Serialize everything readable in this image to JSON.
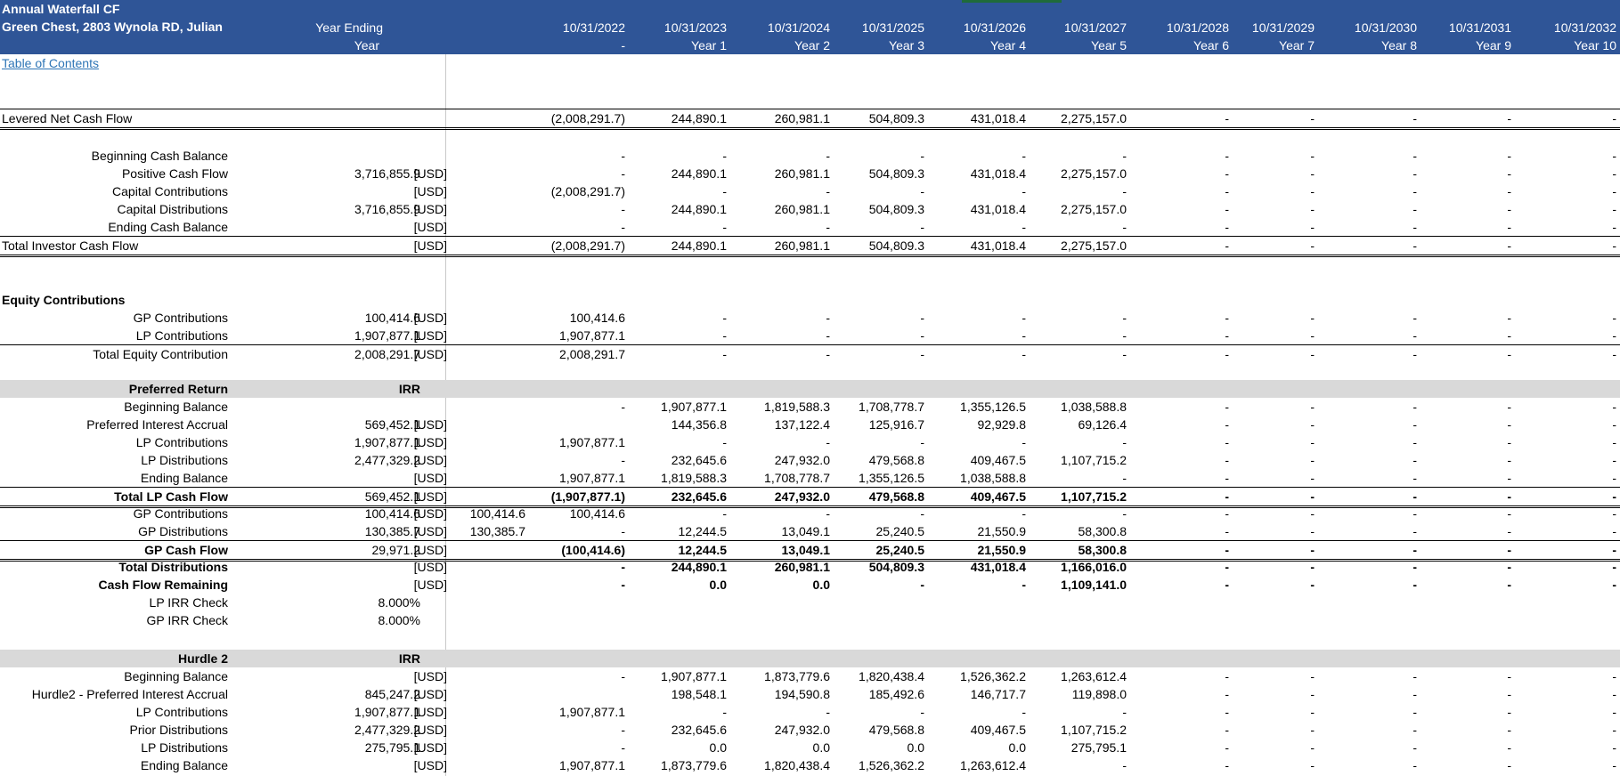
{
  "header": {
    "title": "Annual Waterfall CF",
    "subtitle": "Green Chest, 2803 Wynola RD, Julian",
    "col_label_1": "Year Ending",
    "col_label_2": "Year",
    "dates": [
      "10/31/2022",
      "10/31/2023",
      "10/31/2024",
      "10/31/2025",
      "10/31/2026",
      "10/31/2027",
      "10/31/2028",
      "10/31/2029",
      "10/31/2030",
      "10/31/2031",
      "10/31/2032"
    ],
    "years": [
      "-",
      "Year 1",
      "Year 2",
      "Year 3",
      "Year 4",
      "Year 5",
      "Year 6",
      "Year 7",
      "Year 8",
      "Year 9",
      "Year 10"
    ]
  },
  "toc_link": "Table of Contents",
  "rows": [
    {
      "label": "Levered Net Cash Flow",
      "align": "left",
      "total": "",
      "unit": "",
      "extra": "",
      "values": [
        "(2,008,291.7)",
        "244,890.1",
        "260,981.1",
        "504,809.3",
        "431,018.4",
        "2,275,157.0",
        "-",
        "-",
        "-",
        "-",
        "-"
      ]
    },
    {
      "label": "Beginning Cash Balance",
      "total": "",
      "unit": "",
      "extra": "",
      "values": [
        "-",
        "-",
        "-",
        "-",
        "-",
        "-",
        "-",
        "-",
        "-",
        "-",
        "-"
      ]
    },
    {
      "label": "Positive Cash Flow",
      "total": "3,716,855.9",
      "unit": "[USD]",
      "extra": "",
      "values": [
        "-",
        "244,890.1",
        "260,981.1",
        "504,809.3",
        "431,018.4",
        "2,275,157.0",
        "-",
        "-",
        "-",
        "-",
        "-"
      ]
    },
    {
      "label": "Capital Contributions",
      "total": "",
      "unit": "[USD]",
      "extra": "",
      "values": [
        "(2,008,291.7)",
        "-",
        "-",
        "-",
        "-",
        "-",
        "-",
        "-",
        "-",
        "-",
        "-"
      ]
    },
    {
      "label": "Capital Distributions",
      "total": "3,716,855.9",
      "unit": "[USD]",
      "extra": "",
      "values": [
        "-",
        "244,890.1",
        "260,981.1",
        "504,809.3",
        "431,018.4",
        "2,275,157.0",
        "-",
        "-",
        "-",
        "-",
        "-"
      ]
    },
    {
      "label": "Ending Cash Balance",
      "total": "",
      "unit": "[USD]",
      "extra": "",
      "values": [
        "-",
        "-",
        "-",
        "-",
        "-",
        "-",
        "-",
        "-",
        "-",
        "-",
        "-"
      ]
    },
    {
      "label": "Total Investor Cash Flow",
      "align": "left",
      "total": "",
      "unit": "[USD]",
      "extra": "",
      "values": [
        "(2,008,291.7)",
        "244,890.1",
        "260,981.1",
        "504,809.3",
        "431,018.4",
        "2,275,157.0",
        "-",
        "-",
        "-",
        "-",
        "-"
      ]
    },
    {
      "label": "Equity Contributions",
      "align": "left",
      "bold": true,
      "total": "",
      "unit": "",
      "extra": "",
      "values": [
        "",
        "",
        "",
        "",
        "",
        "",
        "",
        "",
        "",
        "",
        ""
      ]
    },
    {
      "label": "GP Contributions",
      "total": "100,414.6",
      "unit": "[USD]",
      "extra": "",
      "values": [
        "100,414.6",
        "-",
        "-",
        "-",
        "-",
        "-",
        "-",
        "-",
        "-",
        "-",
        "-"
      ]
    },
    {
      "label": "LP Contributions",
      "total": "1,907,877.1",
      "unit": "[USD]",
      "extra": "",
      "values": [
        "1,907,877.1",
        "-",
        "-",
        "-",
        "-",
        "-",
        "-",
        "-",
        "-",
        "-",
        "-"
      ]
    },
    {
      "label": "Total Equity Contribution",
      "total": "2,008,291.7",
      "unit": "[USD]",
      "extra": "",
      "values": [
        "2,008,291.7",
        "-",
        "-",
        "-",
        "-",
        "-",
        "-",
        "-",
        "-",
        "-",
        "-"
      ]
    },
    {
      "label": "Preferred Return",
      "bold": true,
      "total": "IRR",
      "unit": "",
      "extra": "",
      "values": [
        "",
        "",
        "",
        "",
        "",
        "",
        "",
        "",
        "",
        "",
        ""
      ]
    },
    {
      "label": "Beginning Balance",
      "total": "",
      "unit": "",
      "extra": "",
      "values": [
        "-",
        "1,907,877.1",
        "1,819,588.3",
        "1,708,778.7",
        "1,355,126.5",
        "1,038,588.8",
        "-",
        "-",
        "-",
        "-",
        "-"
      ]
    },
    {
      "label": "Preferred Interest Accrual",
      "total": "569,452.1",
      "unit": "[USD]",
      "extra": "",
      "values": [
        "",
        "144,356.8",
        "137,122.4",
        "125,916.7",
        "92,929.8",
        "69,126.4",
        "-",
        "-",
        "-",
        "-",
        "-"
      ]
    },
    {
      "label": "LP Contributions",
      "total": "1,907,877.1",
      "unit": "[USD]",
      "extra": "",
      "values": [
        "1,907,877.1",
        "-",
        "-",
        "-",
        "-",
        "-",
        "-",
        "-",
        "-",
        "-",
        "-"
      ]
    },
    {
      "label": "LP Distributions",
      "total": "2,477,329.2",
      "unit": "[USD]",
      "extra": "",
      "values": [
        "-",
        "232,645.6",
        "247,932.0",
        "479,568.8",
        "409,467.5",
        "1,107,715.2",
        "-",
        "-",
        "-",
        "-",
        "-"
      ]
    },
    {
      "label": "Ending Balance",
      "total": "",
      "unit": "[USD]",
      "extra": "",
      "values": [
        "1,907,877.1",
        "1,819,588.3",
        "1,708,778.7",
        "1,355,126.5",
        "1,038,588.8",
        "-",
        "-",
        "-",
        "-",
        "-",
        "-"
      ]
    },
    {
      "label": "Total LP Cash Flow",
      "bold": true,
      "total": "569,452.1",
      "unit": "[USD]",
      "extra": "",
      "values": [
        "(1,907,877.1)",
        "232,645.6",
        "247,932.0",
        "479,568.8",
        "409,467.5",
        "1,107,715.2",
        "-",
        "-",
        "-",
        "-",
        "-"
      ]
    },
    {
      "label": "GP Contributions",
      "total": "100,414.6",
      "unit": "[USD]",
      "extra": "100,414.6",
      "values": [
        "100,414.6",
        "-",
        "-",
        "-",
        "-",
        "-",
        "-",
        "-",
        "-",
        "-",
        "-"
      ]
    },
    {
      "label": "GP Distributions",
      "total": "130,385.7",
      "unit": "[USD]",
      "extra": "130,385.7",
      "values": [
        "-",
        "12,244.5",
        "13,049.1",
        "25,240.5",
        "21,550.9",
        "58,300.8",
        "-",
        "-",
        "-",
        "-",
        "-"
      ]
    },
    {
      "label": "GP Cash Flow",
      "bold": true,
      "total": "29,971.2",
      "unit": "[USD]",
      "extra": "",
      "values": [
        "(100,414.6)",
        "12,244.5",
        "13,049.1",
        "25,240.5",
        "21,550.9",
        "58,300.8",
        "-",
        "-",
        "-",
        "-",
        "-"
      ]
    },
    {
      "label": "Total Distributions",
      "bold": true,
      "total": "",
      "unit": "[USD]",
      "extra": "",
      "values": [
        "-",
        "244,890.1",
        "260,981.1",
        "504,809.3",
        "431,018.4",
        "1,166,016.0",
        "-",
        "-",
        "-",
        "-",
        "-"
      ]
    },
    {
      "label": "Cash Flow Remaining",
      "bold": true,
      "total": "",
      "unit": "[USD]",
      "extra": "",
      "values": [
        "-",
        "0.0",
        "0.0",
        "-",
        "-",
        "1,109,141.0",
        "-",
        "-",
        "-",
        "-",
        "-"
      ]
    },
    {
      "label": "LP IRR Check",
      "total": "8.000%",
      "unit": "",
      "extra": "",
      "values": [
        "",
        "",
        "",
        "",
        "",
        "",
        "",
        "",
        "",
        "",
        ""
      ]
    },
    {
      "label": "GP IRR Check",
      "total": "8.000%",
      "unit": "",
      "extra": "",
      "values": [
        "",
        "",
        "",
        "",
        "",
        "",
        "",
        "",
        "",
        "",
        ""
      ]
    },
    {
      "label": "Hurdle 2",
      "bold": true,
      "total": "IRR",
      "unit": "",
      "extra": "",
      "values": [
        "",
        "",
        "",
        "",
        "",
        "",
        "",
        "",
        "",
        "",
        ""
      ]
    },
    {
      "label": "Beginning Balance",
      "total": "",
      "unit": "[USD]",
      "extra": "",
      "values": [
        "-",
        "1,907,877.1",
        "1,873,779.6",
        "1,820,438.4",
        "1,526,362.2",
        "1,263,612.4",
        "-",
        "-",
        "-",
        "-",
        "-"
      ]
    },
    {
      "label": "Hurdle2 - Preferred Interest Accrual",
      "total": "845,247.2",
      "unit": "[USD]",
      "extra": "",
      "values": [
        "",
        "198,548.1",
        "194,590.8",
        "185,492.6",
        "146,717.7",
        "119,898.0",
        "-",
        "-",
        "-",
        "-",
        "-"
      ]
    },
    {
      "label": "LP Contributions",
      "total": "1,907,877.1",
      "unit": "[USD]",
      "extra": "",
      "values": [
        "1,907,877.1",
        "-",
        "-",
        "-",
        "-",
        "-",
        "-",
        "-",
        "-",
        "-",
        "-"
      ]
    },
    {
      "label": "Prior Distributions",
      "total": "2,477,329.2",
      "unit": "[USD]",
      "extra": "",
      "values": [
        "-",
        "232,645.6",
        "247,932.0",
        "479,568.8",
        "409,467.5",
        "1,107,715.2",
        "-",
        "-",
        "-",
        "-",
        "-"
      ]
    },
    {
      "label": "LP Distributions",
      "total": "275,795.1",
      "unit": "[USD]",
      "extra": "",
      "values": [
        "-",
        "0.0",
        "0.0",
        "0.0",
        "0.0",
        "275,795.1",
        "-",
        "-",
        "-",
        "-",
        "-"
      ]
    },
    {
      "label": "Ending Balance",
      "total": "",
      "unit": "[USD]",
      "extra": "",
      "values": [
        "1,907,877.1",
        "1,873,779.6",
        "1,820,438.4",
        "1,526,362.2",
        "1,263,612.4",
        "-",
        "-",
        "-",
        "-",
        "-",
        "-"
      ]
    }
  ]
}
